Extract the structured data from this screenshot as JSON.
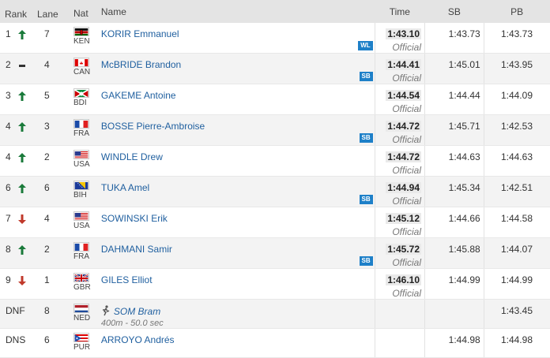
{
  "headers": {
    "rank": "Rank",
    "lane": "Lane",
    "nat": "Nat",
    "name": "Name",
    "time": "Time",
    "sb": "SB",
    "pb": "PB"
  },
  "rows": [
    {
      "rank": "1",
      "arrow": "up",
      "lane": "7",
      "nat": "KEN",
      "flag": "ken-flag",
      "name": "KORIR Emmanuel",
      "time": "1:43.10",
      "status": "Official",
      "sb": "1:43.73",
      "pb": "1:43.73",
      "badge": "WL"
    },
    {
      "rank": "2",
      "arrow": "same",
      "lane": "4",
      "nat": "CAN",
      "flag": "can-flag",
      "name": "McBRIDE Brandon",
      "time": "1:44.41",
      "status": "Official",
      "sb": "1:45.01",
      "pb": "1:43.95",
      "badge": "SB"
    },
    {
      "rank": "3",
      "arrow": "up",
      "lane": "5",
      "nat": "BDI",
      "flag": "bdi-flag",
      "name": "GAKEME Antoine",
      "time": "1:44.54",
      "status": "Official",
      "sb": "1:44.44",
      "pb": "1:44.09",
      "badge": ""
    },
    {
      "rank": "4",
      "arrow": "up",
      "lane": "3",
      "nat": "FRA",
      "flag": "fra-flag",
      "name": "BOSSE Pierre-Ambroise",
      "time": "1:44.72",
      "status": "Official",
      "sb": "1:45.71",
      "pb": "1:42.53",
      "badge": "SB"
    },
    {
      "rank": "4",
      "arrow": "up",
      "lane": "2",
      "nat": "USA",
      "flag": "usa-flag",
      "name": "WINDLE Drew",
      "time": "1:44.72",
      "status": "Official",
      "sb": "1:44.63",
      "pb": "1:44.63",
      "badge": ""
    },
    {
      "rank": "6",
      "arrow": "up",
      "lane": "6",
      "nat": "BIH",
      "flag": "bih-flag",
      "name": "TUKA Amel",
      "time": "1:44.94",
      "status": "Official",
      "sb": "1:45.34",
      "pb": "1:42.51",
      "badge": "SB"
    },
    {
      "rank": "7",
      "arrow": "down",
      "lane": "4",
      "nat": "USA",
      "flag": "usa-flag",
      "name": "SOWINSKI Erik",
      "time": "1:45.12",
      "status": "Official",
      "sb": "1:44.66",
      "pb": "1:44.58",
      "badge": ""
    },
    {
      "rank": "8",
      "arrow": "up",
      "lane": "2",
      "nat": "FRA",
      "flag": "fra-flag",
      "name": "DAHMANI Samir",
      "time": "1:45.72",
      "status": "Official",
      "sb": "1:45.88",
      "pb": "1:44.07",
      "badge": "SB"
    },
    {
      "rank": "9",
      "arrow": "down",
      "lane": "1",
      "nat": "GBR",
      "flag": "gbr-flag",
      "name": "GILES Elliot",
      "time": "1:46.10",
      "status": "Official",
      "sb": "1:44.99",
      "pb": "1:44.99",
      "badge": ""
    },
    {
      "rank": "DNF",
      "arrow": "",
      "lane": "8",
      "nat": "NED",
      "flag": "ned-flag",
      "name": "SOM Bram",
      "time": "",
      "status": "",
      "sb": "",
      "pb": "1:43.45",
      "badge": "",
      "note": "400m - 50.0 sec",
      "dnf": true
    },
    {
      "rank": "DNS",
      "arrow": "",
      "lane": "6",
      "nat": "PUR",
      "flag": "pur-flag",
      "name": "ARROYO Andrés",
      "time": "",
      "status": "",
      "sb": "1:44.98",
      "pb": "1:44.98",
      "badge": ""
    }
  ],
  "colors": {
    "header_bg": "#e4e4e4",
    "alt_row": "#f3f3f3",
    "name_link": "#1f5f9f",
    "badge": "#1e80c8",
    "arrow_up": "#1a7a3a",
    "arrow_down": "#c0392b"
  }
}
